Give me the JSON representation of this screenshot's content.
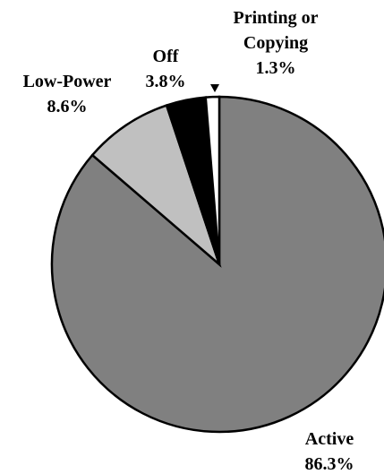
{
  "chart_data": {
    "type": "pie",
    "title": "",
    "start_angle_deg": 0,
    "direction": "clockwise",
    "slices": [
      {
        "name": "Active",
        "value": 86.3,
        "value_label": "86.3%",
        "color": "#808080"
      },
      {
        "name": "Low-Power",
        "value": 8.6,
        "value_label": "8.6%",
        "color": "#c0c0c0"
      },
      {
        "name": "Off",
        "value": 3.8,
        "value_label": "3.8%",
        "color": "#000000"
      },
      {
        "name": "Printing or Copying",
        "name_lines": [
          "Printing or",
          "Copying"
        ],
        "value": 1.3,
        "value_label": "1.3%",
        "color": "#ffffff"
      }
    ],
    "legend": "none",
    "labels": "outside, name above percentage"
  }
}
